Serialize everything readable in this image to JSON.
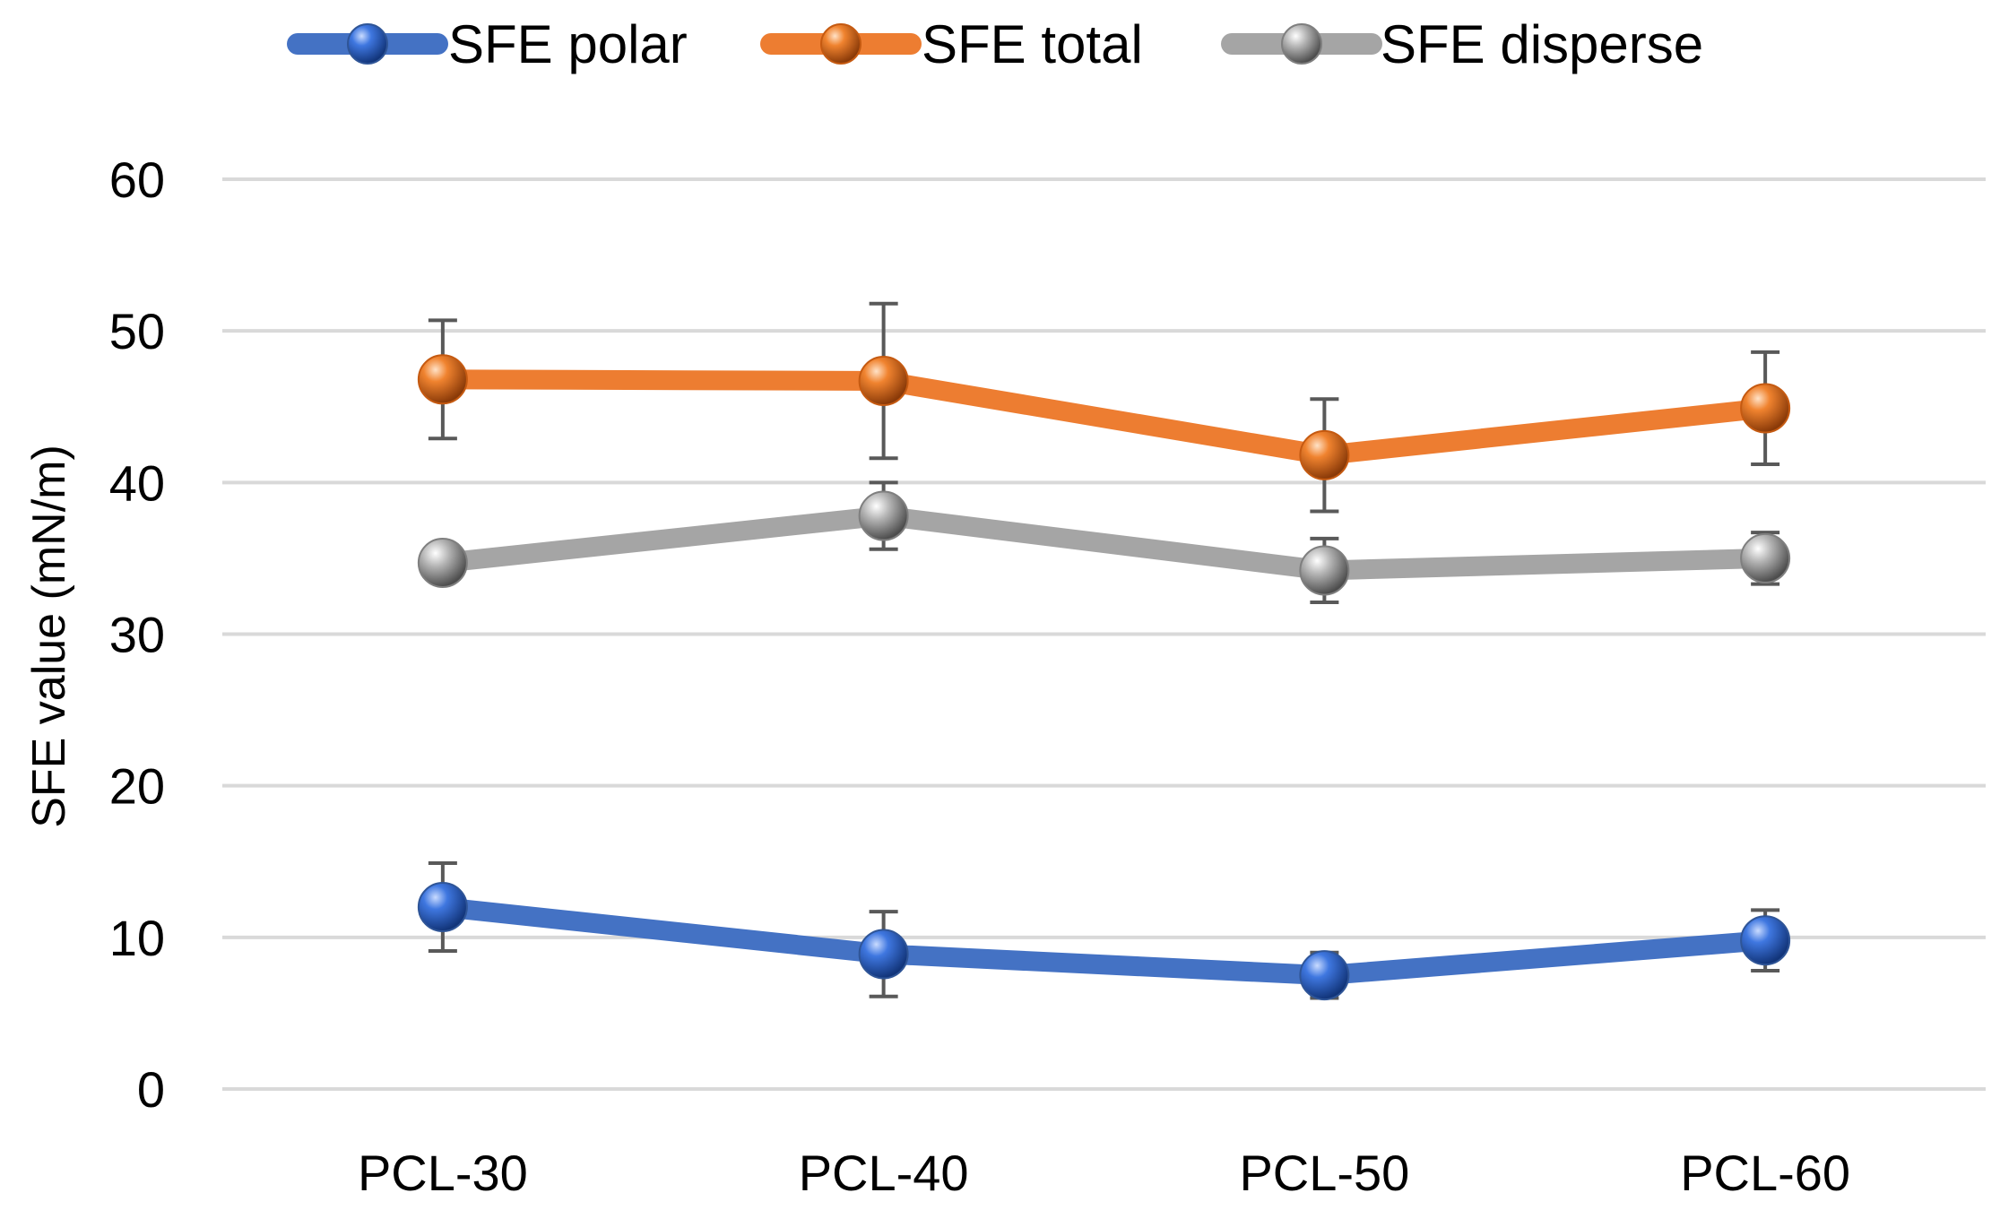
{
  "chart_data": {
    "type": "line",
    "title": "",
    "xlabel": "",
    "ylabel": "SFE value (mN/m)",
    "categories": [
      "PCL-30",
      "PCL-40",
      "PCL-50",
      "PCL-60"
    ],
    "ylim": [
      0,
      60
    ],
    "yticks": [
      0,
      10,
      20,
      30,
      40,
      50,
      60
    ],
    "grid": true,
    "legend_position": "top-center",
    "series": [
      {
        "name": "SFE polar",
        "color": "#4472C4",
        "values": [
          12.0,
          8.9,
          7.5,
          9.8
        ],
        "errors": [
          2.9,
          2.8,
          1.5,
          2.0
        ]
      },
      {
        "name": "SFE total",
        "color": "#ED7D31",
        "values": [
          46.8,
          46.7,
          41.8,
          44.9
        ],
        "errors": [
          3.9,
          5.1,
          3.7,
          3.7
        ]
      },
      {
        "name": "SFE disperse",
        "color": "#A5A5A5",
        "values": [
          34.7,
          37.8,
          34.2,
          35.0
        ],
        "errors": [
          0.0,
          2.2,
          2.1,
          1.7
        ]
      }
    ]
  }
}
